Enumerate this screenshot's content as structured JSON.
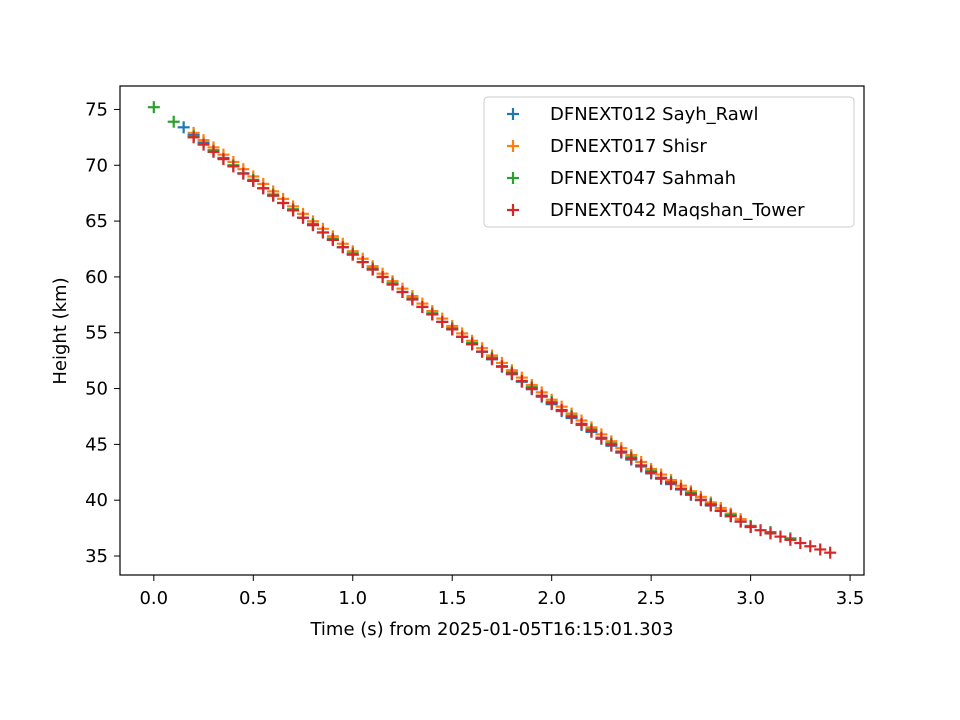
{
  "chart_data": {
    "type": "scatter",
    "xlabel": "Time (s) from 2025-01-05T16:15:01.303",
    "ylabel": "Height (km)",
    "xlim": [
      -0.17,
      3.57
    ],
    "ylim": [
      33.3,
      77.1
    ],
    "xticks": [
      "0.0",
      "0.5",
      "1.0",
      "1.5",
      "2.0",
      "2.5",
      "3.0",
      "3.5"
    ],
    "yticks": [
      "35",
      "40",
      "45",
      "50",
      "55",
      "60",
      "65",
      "70",
      "75"
    ],
    "marker": "plus",
    "legend_position": "upper right",
    "series": [
      {
        "name": "DFNEXT012 Sayh_Rawl",
        "color": "#1f77b4",
        "x_start": 0.15,
        "x_end": 3.0,
        "x_step": 0.05,
        "points": [
          [
            0.15,
            73.4
          ],
          [
            0.5,
            68.6
          ],
          [
            1.0,
            62.0
          ],
          [
            1.5,
            55.3
          ],
          [
            2.0,
            48.6
          ],
          [
            2.5,
            42.4
          ],
          [
            3.0,
            37.6
          ]
        ]
      },
      {
        "name": "DFNEXT017 Shisr",
        "color": "#ff7f0e",
        "x_start": 0.2,
        "x_end": 2.95,
        "x_step": 0.05,
        "points": [
          [
            0.2,
            72.9
          ],
          [
            0.5,
            69.0
          ],
          [
            1.0,
            62.3
          ],
          [
            1.5,
            55.6
          ],
          [
            2.0,
            49.0
          ],
          [
            2.5,
            42.8
          ],
          [
            2.95,
            38.3
          ]
        ]
      },
      {
        "name": "DFNEXT047 Sahmah",
        "color": "#2ca02c",
        "x_start": 0.0,
        "x_end": 3.25,
        "x_step": 0.1,
        "points": [
          [
            0.0,
            75.2
          ],
          [
            0.5,
            68.7
          ],
          [
            1.0,
            62.1
          ],
          [
            1.5,
            55.4
          ],
          [
            2.0,
            48.8
          ],
          [
            2.5,
            42.6
          ],
          [
            3.0,
            37.7
          ],
          [
            3.25,
            36.3
          ]
        ]
      },
      {
        "name": "DFNEXT042 Maqshan_Tower",
        "color": "#d62728",
        "x_start": 0.2,
        "x_end": 3.4,
        "x_step": 0.05,
        "points": [
          [
            0.2,
            72.5
          ],
          [
            0.5,
            68.6
          ],
          [
            1.0,
            62.0
          ],
          [
            1.5,
            55.3
          ],
          [
            2.0,
            48.7
          ],
          [
            2.5,
            42.5
          ],
          [
            3.0,
            37.6
          ],
          [
            3.4,
            35.3
          ]
        ]
      }
    ]
  }
}
